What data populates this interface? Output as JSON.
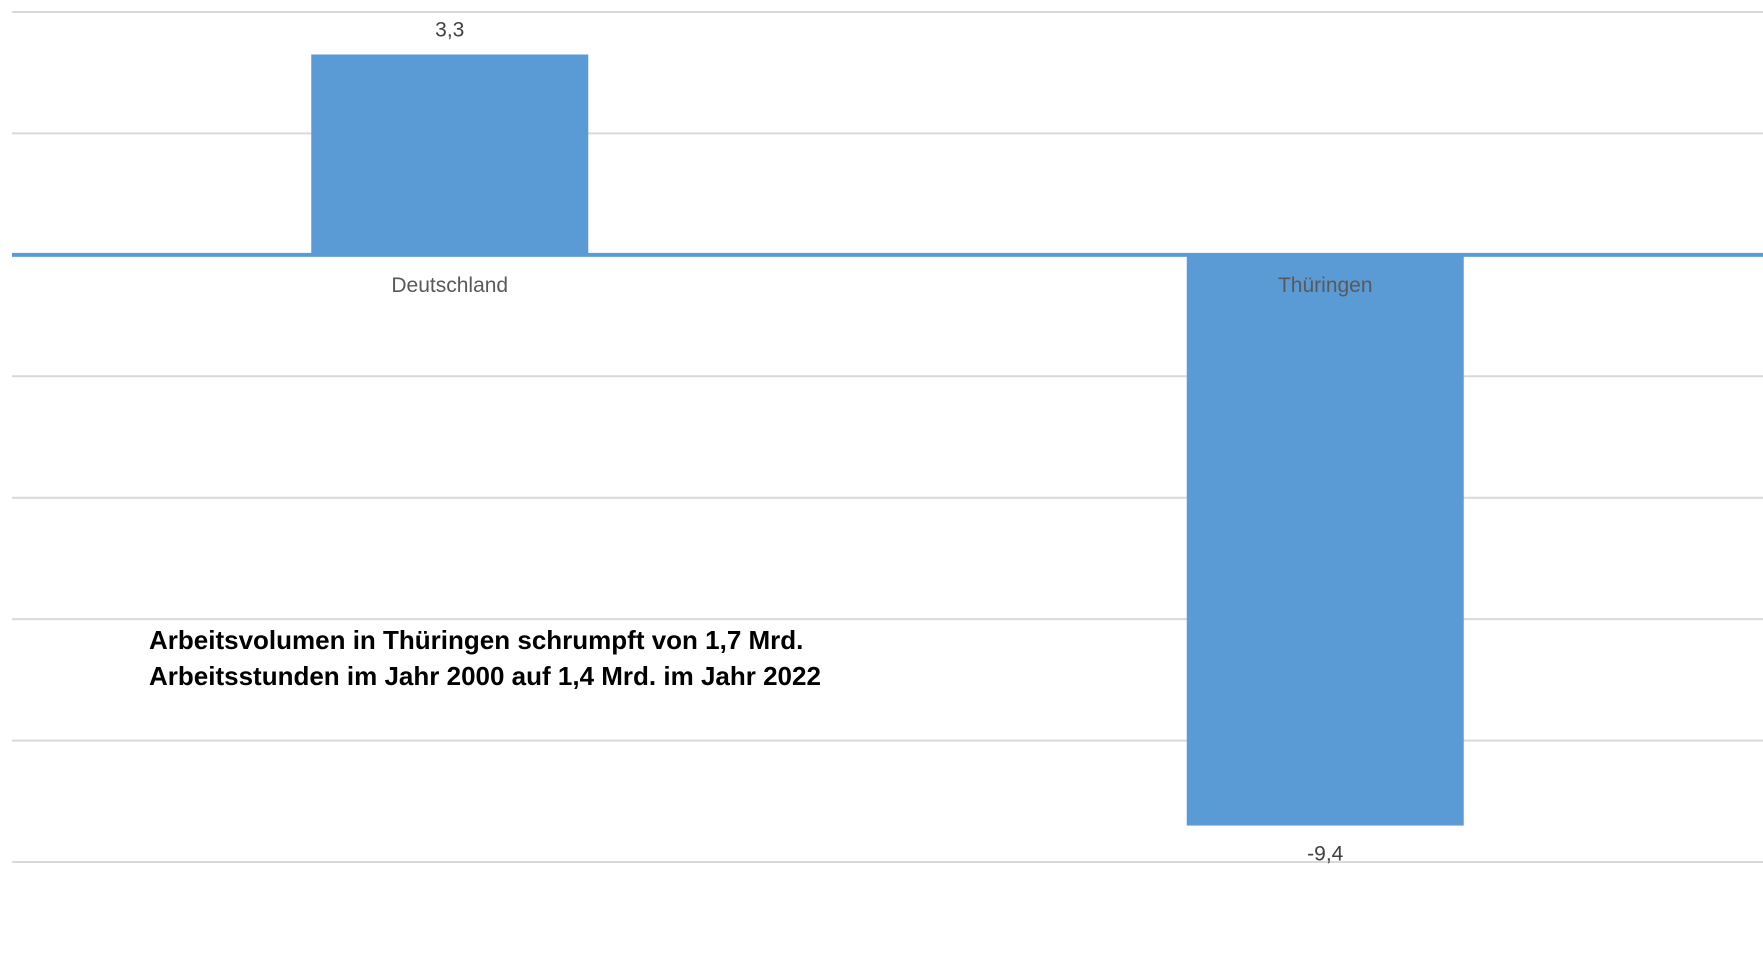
{
  "chart_data": {
    "type": "bar",
    "categories": [
      "Deutschland",
      "Thüringen"
    ],
    "values": [
      3.3,
      -9.4
    ],
    "data_labels": [
      "3,3",
      "-9,4"
    ],
    "ylim": [
      -10,
      4
    ],
    "gridline_step": 2,
    "grid": true,
    "legend": "none",
    "bar_color": "#5b9bd5",
    "zero_line_color": "#5b9bd5",
    "grid_color": "#d9d9d9",
    "annotation": [
      "Arbeitsvolumen in Thüringen schrumpft von 1,7 Mrd.",
      "Arbeitsstunden im Jahr 2000 auf 1,4 Mrd. im Jahr 2022"
    ]
  }
}
